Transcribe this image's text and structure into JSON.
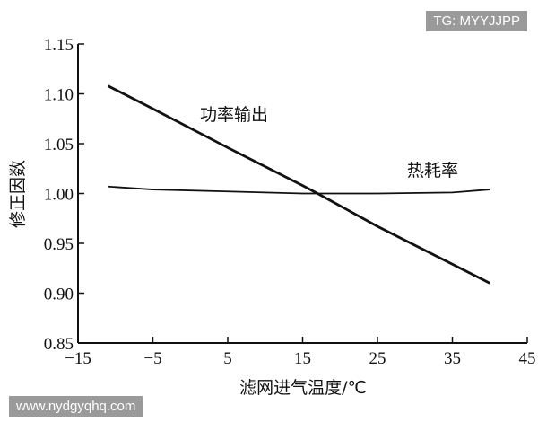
{
  "watermarks": {
    "top_right": "TG: MYYJJPP",
    "bottom_left": "www.nydgyqhq.com"
  },
  "chart_data": {
    "type": "line",
    "title": "",
    "xlabel": "滤网进气温度/℃",
    "ylabel": "修正因数",
    "xlim": [
      -15,
      45
    ],
    "ylim": [
      0.85,
      1.15
    ],
    "xticks": [
      -15,
      -5,
      5,
      15,
      25,
      35,
      45
    ],
    "xtick_labels": [
      "−15",
      "−5",
      "5",
      "15",
      "25",
      "35",
      "45"
    ],
    "yticks": [
      0.85,
      0.9,
      0.95,
      1.0,
      1.05,
      1.1,
      1.15
    ],
    "ytick_labels": [
      "0.85",
      "0.90",
      "0.95",
      "1.00",
      "1.05",
      "1.10",
      "1.15"
    ],
    "grid": false,
    "series": [
      {
        "name": "功率输出",
        "x": [
          -11,
          -5,
          5,
          15,
          17,
          25,
          35,
          40
        ],
        "y": [
          1.108,
          1.085,
          1.046,
          1.008,
          1.0,
          0.967,
          0.929,
          0.91
        ]
      },
      {
        "name": "热耗率",
        "x": [
          -11,
          -5,
          5,
          15,
          25,
          35,
          40
        ],
        "y": [
          1.007,
          1.004,
          1.002,
          1.0,
          1.0,
          1.001,
          1.004
        ]
      }
    ]
  }
}
